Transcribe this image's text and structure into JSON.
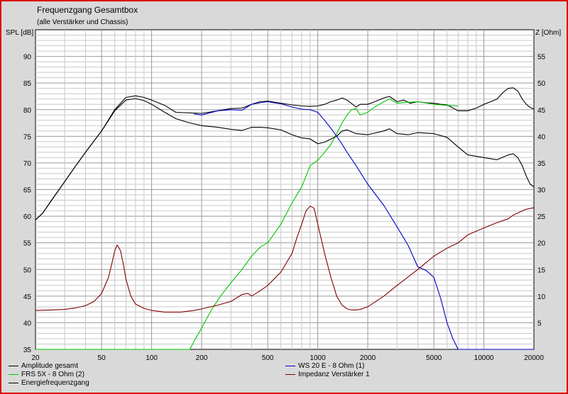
{
  "chart_data": {
    "type": "line",
    "title": "Frequenzgang Gesamtbox",
    "subtitle": "(alle Verstärker und Chassis)",
    "ylabel": "SPL [dB]",
    "y2label": "Z [Ohm]",
    "xscale": "log",
    "xlim": [
      20,
      20000
    ],
    "ylim": [
      35,
      95
    ],
    "y2lim": [
      0,
      60
    ],
    "xticks": [
      20,
      50,
      100,
      200,
      500,
      1000,
      2000,
      5000,
      10000,
      20000
    ],
    "xtick_labels": [
      "20",
      "50",
      "100",
      "200",
      "500",
      "1000",
      "2000",
      "5000",
      "10000",
      "20000"
    ],
    "yticks": [
      35,
      40,
      45,
      50,
      55,
      60,
      65,
      70,
      75,
      80,
      85,
      90
    ],
    "y2ticks": [
      5,
      10,
      15,
      20,
      25,
      30,
      35,
      40,
      45,
      50,
      55
    ],
    "grid": true,
    "legend_position": "bottom",
    "series": [
      {
        "name": "Amplitude gesamt",
        "axis": "left",
        "color": "#000000",
        "x": [
          20,
          22,
          25,
          30,
          35,
          40,
          50,
          60,
          70,
          80,
          90,
          100,
          120,
          140,
          170,
          200,
          250,
          300,
          350,
          400,
          450,
          500,
          600,
          700,
          800,
          900,
          1000,
          1100,
          1200,
          1300,
          1400,
          1500,
          1700,
          1800,
          2000,
          2200,
          2500,
          2700,
          3000,
          3300,
          3600,
          4000,
          4500,
          5000,
          5500,
          6000,
          7000,
          8000,
          9000,
          10000,
          11000,
          12000,
          13000,
          14000,
          15000,
          16000,
          17000,
          18000,
          19000,
          20000
        ],
        "y": [
          59.3,
          60.5,
          63,
          66.5,
          69.5,
          72,
          76,
          80,
          82.3,
          82.6,
          82.3,
          81.8,
          80.8,
          79.5,
          79.4,
          79.3,
          79.8,
          80.2,
          80.3,
          81,
          81.5,
          81.6,
          81.2,
          80.9,
          80.7,
          80.6,
          80.7,
          81,
          81.5,
          81.8,
          82.2,
          81.8,
          80.5,
          81,
          81,
          81.5,
          82.2,
          82.5,
          81.5,
          81.8,
          81.2,
          81.5,
          81.3,
          81.2,
          81,
          80.9,
          79.8,
          79.8,
          80.3,
          81,
          81.5,
          82,
          83.2,
          84,
          84.1,
          83.5,
          82,
          81,
          80.4,
          80.1
        ]
      },
      {
        "name": "FRS 5X - 8 Ohm (2)",
        "axis": "left",
        "color": "#00c800",
        "x": [
          20,
          100,
          170,
          180,
          200,
          230,
          260,
          300,
          350,
          400,
          450,
          500,
          600,
          700,
          800,
          900,
          1000,
          1100,
          1200,
          1300,
          1400,
          1500,
          1600,
          1700,
          1800,
          2000,
          2200,
          2500,
          2700,
          3000,
          3500,
          4000,
          5000,
          6000,
          7000
        ],
        "y": [
          35,
          35,
          35,
          36.5,
          39,
          42.5,
          45,
          47.5,
          50,
          52.5,
          54.2,
          55,
          58.5,
          62.5,
          65.5,
          69.5,
          70.5,
          72,
          73.5,
          75.5,
          77.5,
          79,
          80,
          80.2,
          79,
          79.5,
          80.5,
          81.5,
          82,
          81.2,
          81.4,
          81.5,
          81,
          80.8,
          80.7
        ]
      },
      {
        "name": "Energiefrequenzgang",
        "axis": "left",
        "color": "#000000",
        "x": [
          20,
          22,
          25,
          30,
          35,
          40,
          50,
          60,
          70,
          80,
          90,
          100,
          120,
          140,
          170,
          200,
          250,
          300,
          350,
          400,
          450,
          500,
          600,
          700,
          800,
          900,
          1000,
          1100,
          1200,
          1300,
          1400,
          1500,
          1700,
          2000,
          2500,
          2700,
          3000,
          3500,
          4000,
          5000,
          6000,
          7000,
          8000,
          10000,
          12000,
          14000,
          15000,
          16000,
          17000,
          18000,
          19000,
          20000
        ],
        "y": [
          59.3,
          60.5,
          63,
          66.5,
          69.5,
          72,
          76,
          79.8,
          81.8,
          82.1,
          81.7,
          81,
          79.5,
          78.3,
          77.5,
          77,
          76.7,
          76.3,
          76.1,
          76.7,
          76.7,
          76.6,
          76.2,
          75.3,
          74.7,
          74.5,
          73.6,
          73.9,
          74.5,
          75,
          76,
          76.2,
          75.5,
          75.3,
          76,
          76.4,
          75.5,
          75.3,
          75.7,
          75.5,
          74.8,
          73,
          71.5,
          71,
          70.6,
          71.5,
          71.7,
          71,
          69.5,
          67.5,
          66,
          65.5
        ]
      },
      {
        "name": "WS 20 E - 8 Ohm  (1)",
        "axis": "left",
        "color": "#0000c8",
        "x": [
          180,
          200,
          250,
          300,
          350,
          400,
          450,
          500,
          600,
          700,
          800,
          900,
          1000,
          1100,
          1200,
          1300,
          1400,
          1500,
          1700,
          2000,
          2500,
          3000,
          3500,
          4000,
          4500,
          5000,
          5500,
          6000,
          6500,
          7000,
          20000
        ],
        "y": [
          79.2,
          79,
          79.8,
          80,
          79.9,
          81,
          81.3,
          81.5,
          81.1,
          80.5,
          80.1,
          80,
          79.5,
          78,
          76.5,
          75,
          73.5,
          72,
          69.5,
          66,
          62,
          58,
          54.5,
          50.5,
          49.8,
          48.5,
          44.5,
          40,
          37,
          35,
          35
        ]
      },
      {
        "name": "Impedanz Verstärker 1",
        "axis": "right",
        "color": "#800000",
        "x": [
          20,
          25,
          30,
          35,
          40,
          45,
          50,
          55,
          58,
          60,
          62,
          65,
          68,
          70,
          75,
          80,
          90,
          100,
          120,
          150,
          180,
          200,
          250,
          300,
          350,
          380,
          400,
          450,
          500,
          600,
          700,
          750,
          800,
          850,
          900,
          950,
          1000,
          1100,
          1200,
          1300,
          1400,
          1500,
          1600,
          1700,
          1800,
          2000,
          2500,
          3000,
          4000,
          5000,
          6000,
          7000,
          8000,
          10000,
          12000,
          14000,
          15000,
          17000,
          18000,
          20000
        ],
        "y": [
          7.3,
          7.4,
          7.5,
          7.8,
          8.2,
          9,
          10.5,
          13.5,
          16.5,
          18.5,
          19.6,
          18.5,
          15.5,
          13.2,
          10,
          8.5,
          7.7,
          7.3,
          7,
          7,
          7.3,
          7.6,
          8.3,
          9,
          10.3,
          10.5,
          10,
          11,
          12,
          14.5,
          18,
          21,
          23.5,
          26,
          26.9,
          26.5,
          23.5,
          18,
          13.5,
          10,
          8.3,
          7.6,
          7.4,
          7.4,
          7.5,
          8,
          10,
          12,
          15,
          17.5,
          19,
          20,
          21.5,
          22.8,
          23.8,
          24.5,
          25.2,
          26,
          26.3,
          26.6
        ]
      }
    ]
  }
}
